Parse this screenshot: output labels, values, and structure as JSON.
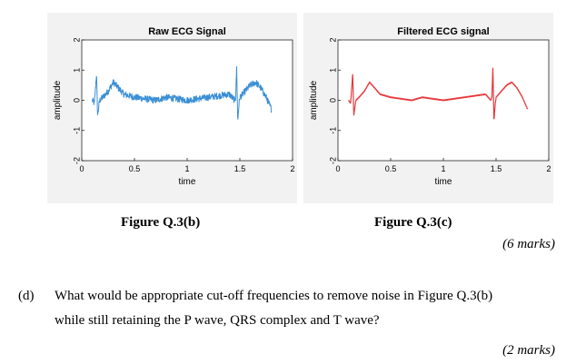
{
  "chart_data": [
    {
      "type": "line",
      "title": "Raw ECG Signal",
      "xlabel": "time",
      "ylabel": "amplitude",
      "xlim": [
        0,
        2
      ],
      "ylim": [
        -2,
        2
      ],
      "xticks": [
        "0",
        "0.5",
        "1",
        "1.5",
        "2"
      ],
      "yticks": [
        "-2",
        "-1",
        "0",
        "1",
        "2"
      ],
      "color": "#3a8fd6",
      "noisy": true,
      "series": [
        {
          "x": [
            0.1,
            0.12,
            0.14,
            0.15,
            0.17,
            0.2,
            0.25,
            0.3,
            0.35,
            0.4,
            0.45,
            0.5,
            0.6,
            0.7,
            0.8,
            0.9,
            1.0,
            1.1,
            1.2,
            1.3,
            1.4,
            1.45,
            1.46,
            1.47,
            1.48,
            1.49,
            1.5,
            1.55,
            1.6,
            1.65,
            1.7,
            1.75,
            1.8
          ],
          "y": [
            0.0,
            -0.1,
            0.9,
            -0.5,
            0.0,
            0.1,
            0.3,
            0.6,
            0.4,
            0.2,
            0.15,
            0.1,
            0.05,
            0.0,
            0.1,
            0.05,
            0.0,
            0.05,
            0.1,
            0.15,
            0.2,
            0.0,
            0.1,
            1.1,
            -0.7,
            -0.2,
            0.1,
            0.3,
            0.5,
            0.6,
            0.4,
            0.1,
            -0.3
          ]
        }
      ]
    },
    {
      "type": "line",
      "title": "Filtered ECG signal",
      "xlabel": "time",
      "ylabel": "amplitude",
      "xlim": [
        0,
        2
      ],
      "ylim": [
        -2,
        2
      ],
      "xticks": [
        "0",
        "0.5",
        "1",
        "1.5",
        "2"
      ],
      "yticks": [
        "-2",
        "-1",
        "0",
        "1",
        "2"
      ],
      "color": "#e8383b",
      "noisy": false,
      "series": [
        {
          "x": [
            0.1,
            0.12,
            0.14,
            0.15,
            0.17,
            0.2,
            0.25,
            0.3,
            0.35,
            0.4,
            0.45,
            0.5,
            0.6,
            0.7,
            0.8,
            0.9,
            1.0,
            1.1,
            1.2,
            1.3,
            1.4,
            1.45,
            1.46,
            1.47,
            1.48,
            1.49,
            1.5,
            1.55,
            1.6,
            1.65,
            1.7,
            1.75,
            1.8
          ],
          "y": [
            0.0,
            -0.1,
            0.9,
            -0.5,
            0.0,
            0.1,
            0.3,
            0.6,
            0.4,
            0.2,
            0.15,
            0.1,
            0.05,
            0.0,
            0.1,
            0.05,
            0.0,
            0.05,
            0.1,
            0.15,
            0.2,
            0.0,
            0.1,
            1.1,
            -0.7,
            -0.2,
            0.1,
            0.3,
            0.5,
            0.6,
            0.4,
            0.1,
            -0.3
          ]
        }
      ]
    }
  ],
  "figures": {
    "caption_b": "Figure Q.3(b)",
    "caption_c": "Figure Q.3(c)"
  },
  "marks_c": "(6 marks)",
  "question_d": {
    "label": "(d)",
    "line1": "What would be appropriate cut-off frequencies to remove noise in Figure Q.3(b)",
    "line2": "while still retaining the P wave, QRS complex and T wave?",
    "marks": "(2 marks)"
  }
}
